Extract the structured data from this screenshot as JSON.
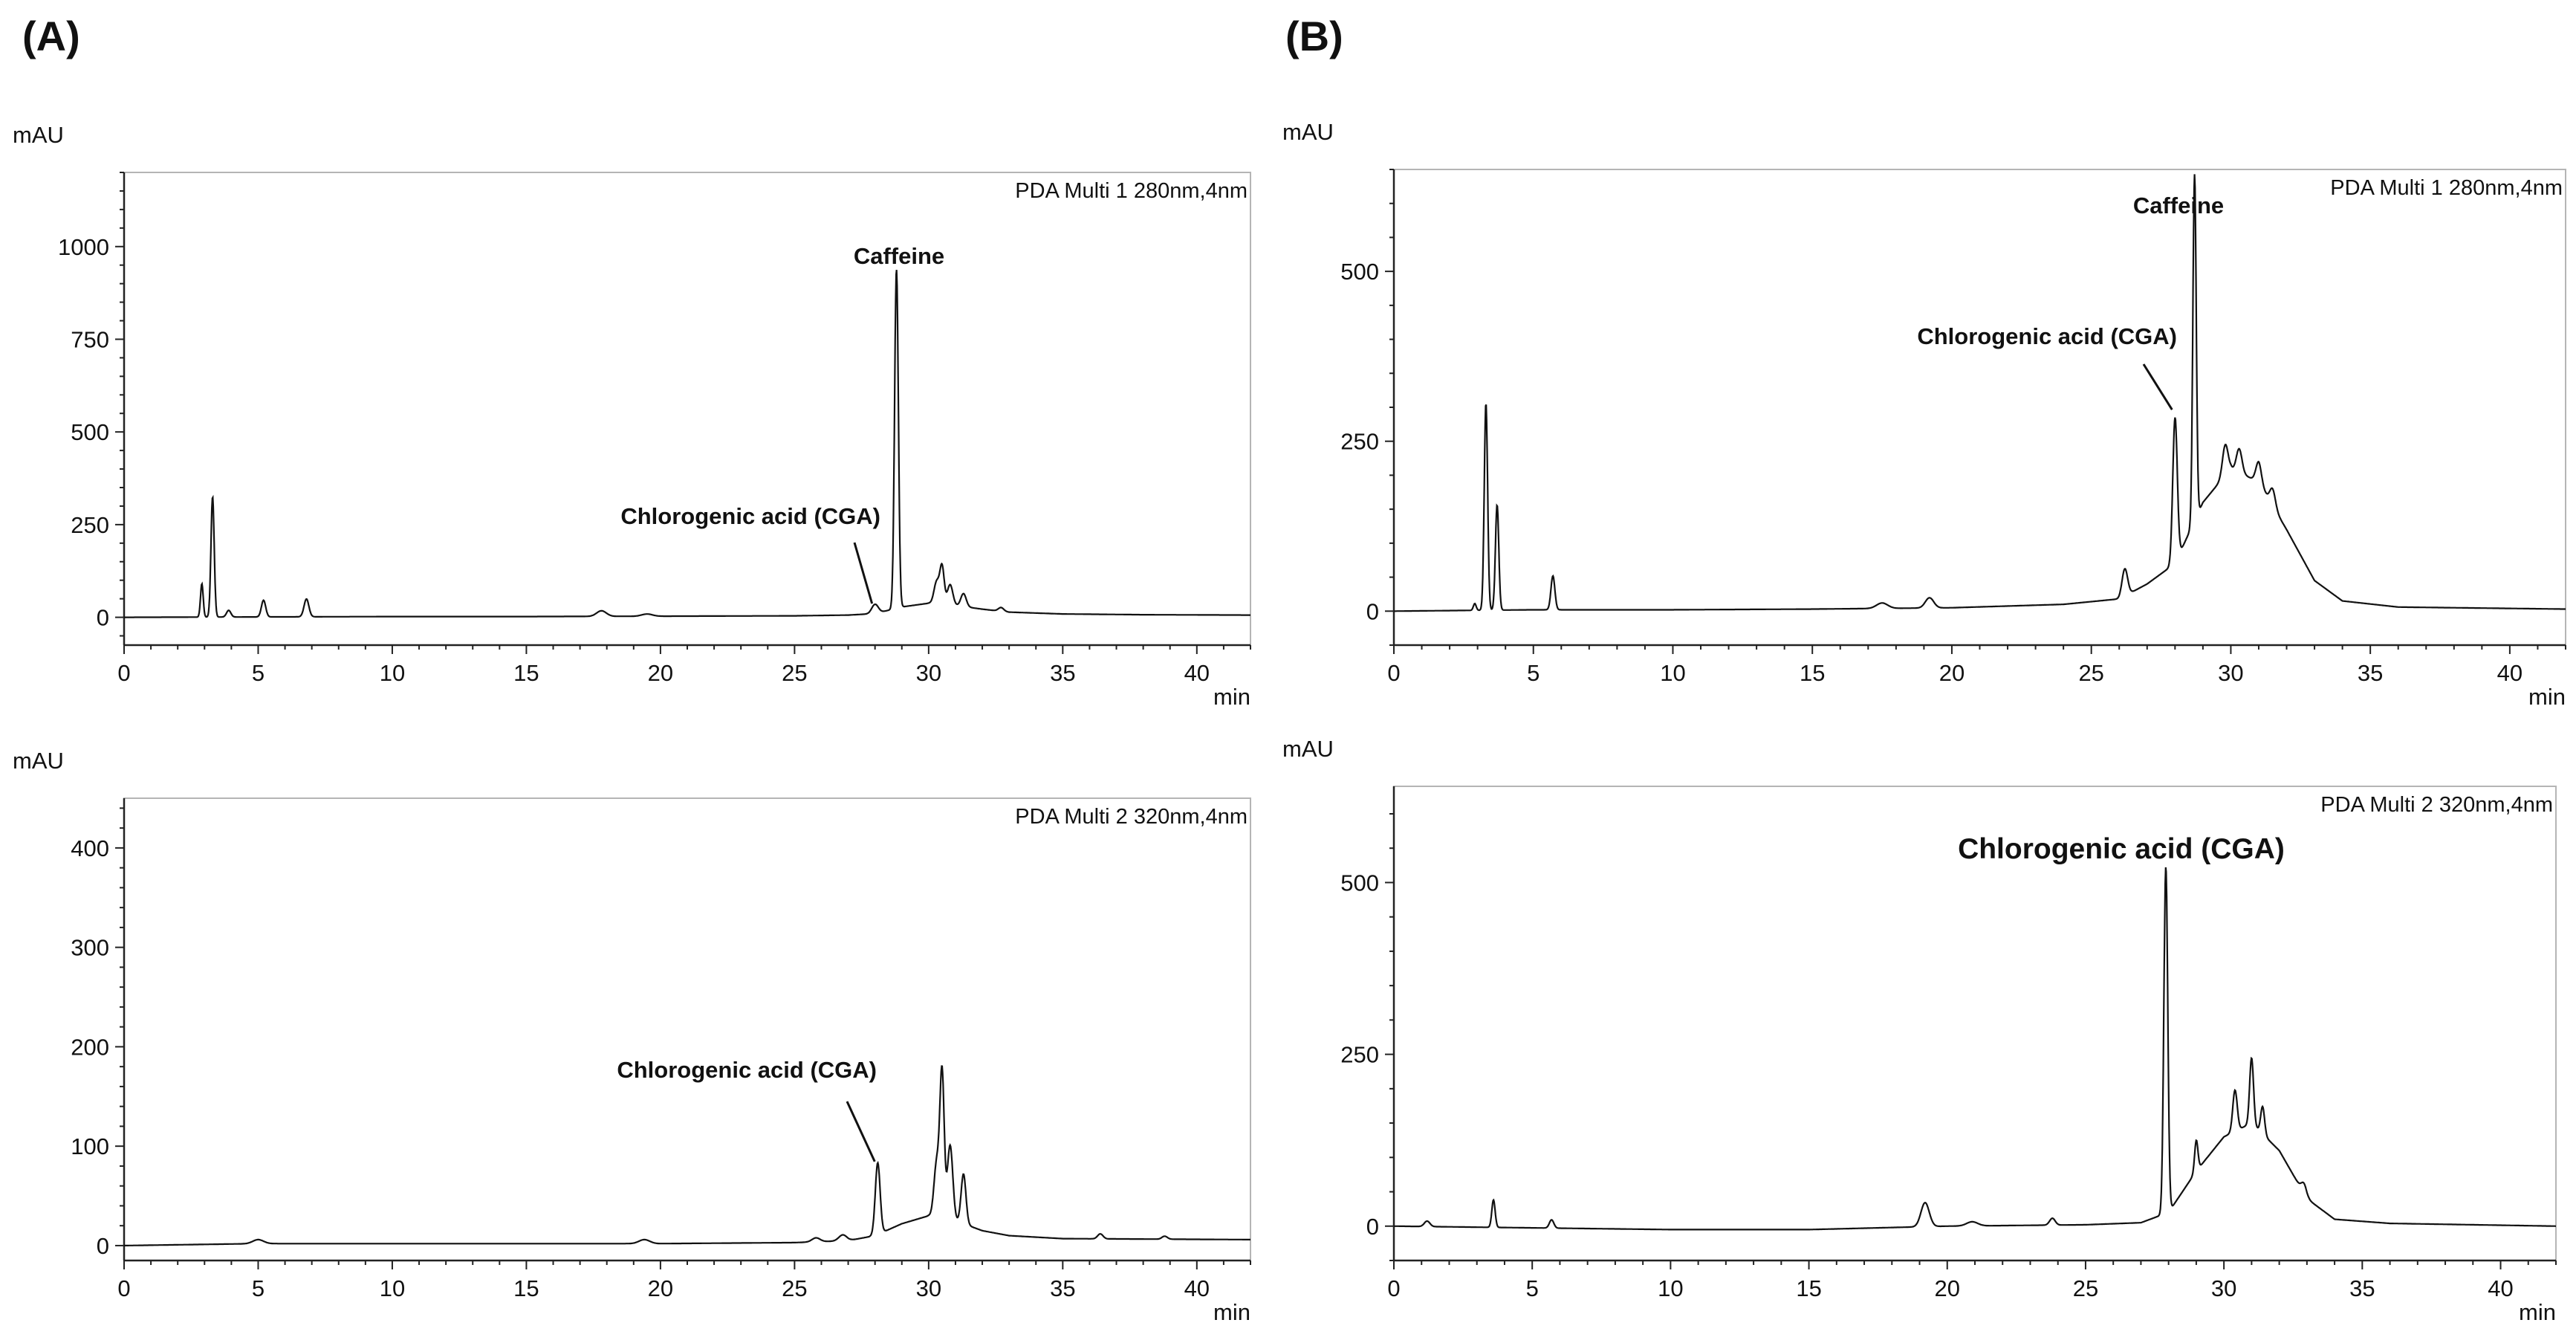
{
  "panel_labels": [
    "(A)",
    "(B)"
  ],
  "chart_data": [
    {
      "type": "line",
      "panel": "(A)",
      "ylabel": "mAU",
      "xlabel": "min",
      "channel": "PDA Multi 1 280nm,4nm",
      "xlim": [
        0,
        42
      ],
      "ylim": [
        -75,
        1200
      ],
      "xticks": [
        0,
        5,
        10,
        15,
        20,
        25,
        30,
        35,
        40
      ],
      "yticks": [
        0,
        250,
        500,
        750,
        1000
      ],
      "baseline": [
        [
          0,
          0
        ],
        [
          5,
          1
        ],
        [
          10,
          2
        ],
        [
          15,
          2
        ],
        [
          20,
          3
        ],
        [
          25,
          4
        ],
        [
          27,
          6
        ],
        [
          28,
          10
        ],
        [
          29,
          28
        ],
        [
          30,
          38
        ],
        [
          31,
          32
        ],
        [
          32,
          22
        ],
        [
          33,
          14
        ],
        [
          35,
          9
        ],
        [
          38,
          7
        ],
        [
          42,
          6
        ]
      ],
      "peaks": [
        [
          2.9,
          90,
          0.05
        ],
        [
          3.3,
          325,
          0.06
        ],
        [
          3.9,
          18,
          0.08
        ],
        [
          5.2,
          45,
          0.08
        ],
        [
          6.8,
          48,
          0.09
        ],
        [
          17.8,
          15,
          0.18
        ],
        [
          19.5,
          6,
          0.2
        ],
        [
          28.0,
          25,
          0.12
        ],
        [
          28.8,
          915,
          0.07
        ],
        [
          30.3,
          60,
          0.1
        ],
        [
          30.5,
          100,
          0.08
        ],
        [
          30.8,
          55,
          0.1
        ],
        [
          31.3,
          35,
          0.1
        ],
        [
          32.7,
          10,
          0.1
        ]
      ],
      "annotations": [
        {
          "text": "Caffeine",
          "x": 28.8,
          "y": 1000
        },
        {
          "text": "Chlorogenic acid (CGA)",
          "x": 28.0,
          "y": 25
        }
      ]
    },
    {
      "type": "line",
      "panel": "(A)",
      "ylabel": "mAU",
      "xlabel": "min",
      "channel": "PDA Multi 2 320nm,4nm",
      "xlim": [
        0,
        42
      ],
      "ylim": [
        -15,
        450
      ],
      "xticks": [
        0,
        5,
        10,
        15,
        20,
        25,
        30,
        35,
        40
      ],
      "yticks": [
        0,
        100,
        200,
        300,
        400
      ],
      "baseline": [
        [
          0,
          0
        ],
        [
          5,
          2
        ],
        [
          10,
          2
        ],
        [
          15,
          2
        ],
        [
          20,
          2
        ],
        [
          25,
          3
        ],
        [
          27,
          5
        ],
        [
          28,
          10
        ],
        [
          29,
          22
        ],
        [
          30,
          30
        ],
        [
          31,
          25
        ],
        [
          32,
          15
        ],
        [
          33,
          10
        ],
        [
          35,
          7
        ],
        [
          42,
          6
        ]
      ],
      "peaks": [
        [
          5.0,
          4,
          0.2
        ],
        [
          19.4,
          4,
          0.2
        ],
        [
          25.8,
          4,
          0.15
        ],
        [
          26.8,
          6,
          0.15
        ],
        [
          28.1,
          72,
          0.09
        ],
        [
          30.3,
          55,
          0.1
        ],
        [
          30.5,
          145,
          0.08
        ],
        [
          30.8,
          75,
          0.1
        ],
        [
          31.3,
          50,
          0.09
        ],
        [
          36.4,
          5,
          0.1
        ],
        [
          38.8,
          3,
          0.1
        ]
      ],
      "annotations": [
        {
          "text": "Chlorogenic acid (CGA)",
          "x": 28.1,
          "y": 80
        }
      ]
    },
    {
      "type": "line",
      "panel": "(B)",
      "ylabel": "mAU",
      "xlabel": "min",
      "channel": "PDA Multi 1 280nm,4nm",
      "xlim": [
        0,
        42
      ],
      "ylim": [
        -50,
        650
      ],
      "xticks": [
        0,
        5,
        10,
        15,
        20,
        25,
        30,
        35,
        40
      ],
      "yticks": [
        0,
        250,
        500
      ],
      "baseline": [
        [
          0,
          0
        ],
        [
          5,
          2
        ],
        [
          10,
          2
        ],
        [
          15,
          3
        ],
        [
          20,
          5
        ],
        [
          24,
          10
        ],
        [
          26,
          18
        ],
        [
          27,
          40
        ],
        [
          28,
          70
        ],
        [
          29,
          160
        ],
        [
          30,
          210
        ],
        [
          31,
          190
        ],
        [
          32,
          120
        ],
        [
          33,
          45
        ],
        [
          34,
          15
        ],
        [
          36,
          6
        ],
        [
          42,
          3
        ]
      ],
      "peaks": [
        [
          2.9,
          10,
          0.05
        ],
        [
          3.3,
          305,
          0.06
        ],
        [
          3.7,
          155,
          0.06
        ],
        [
          5.7,
          50,
          0.07
        ],
        [
          17.5,
          8,
          0.2
        ],
        [
          19.2,
          15,
          0.15
        ],
        [
          26.2,
          40,
          0.1
        ],
        [
          28.0,
          215,
          0.08
        ],
        [
          28.7,
          510,
          0.06
        ],
        [
          29.8,
          45,
          0.1
        ],
        [
          30.3,
          35,
          0.1
        ],
        [
          31.0,
          30,
          0.1
        ],
        [
          31.5,
          25,
          0.1
        ]
      ],
      "annotations": [
        {
          "text": "Caffeine",
          "x": 28.7,
          "y": 580
        },
        {
          "text": "Chlorogenic acid (CGA)",
          "x": 28.0,
          "y": 290
        }
      ]
    },
    {
      "type": "line",
      "panel": "(B)",
      "ylabel": "mAU",
      "xlabel": "min",
      "channel": "PDA Multi 2 320nm,4nm",
      "xlim": [
        0,
        42
      ],
      "ylim": [
        -50,
        640
      ],
      "xticks": [
        0,
        5,
        10,
        15,
        20,
        25,
        30,
        35,
        40
      ],
      "yticks": [
        0,
        250,
        500
      ],
      "baseline": [
        [
          0,
          0
        ],
        [
          10,
          -5
        ],
        [
          15,
          -5
        ],
        [
          20,
          0
        ],
        [
          25,
          2
        ],
        [
          27,
          5
        ],
        [
          28,
          20
        ],
        [
          29,
          80
        ],
        [
          30,
          130
        ],
        [
          31,
          150
        ],
        [
          32,
          110
        ],
        [
          33,
          40
        ],
        [
          34,
          10
        ],
        [
          36,
          4
        ],
        [
          42,
          0
        ]
      ],
      "peaks": [
        [
          1.2,
          8,
          0.1
        ],
        [
          3.6,
          40,
          0.06
        ],
        [
          5.7,
          12,
          0.08
        ],
        [
          19.2,
          35,
          0.15
        ],
        [
          20.9,
          6,
          0.2
        ],
        [
          23.8,
          10,
          0.1
        ],
        [
          27.9,
          505,
          0.07
        ],
        [
          29.0,
          45,
          0.06
        ],
        [
          30.4,
          60,
          0.08
        ],
        [
          31.0,
          95,
          0.07
        ],
        [
          31.4,
          40,
          0.07
        ],
        [
          32.9,
          15,
          0.1
        ]
      ],
      "annotations": [
        {
          "text": "Chlorogenic acid (CGA)",
          "x": 27.9,
          "y": 523
        }
      ]
    }
  ]
}
